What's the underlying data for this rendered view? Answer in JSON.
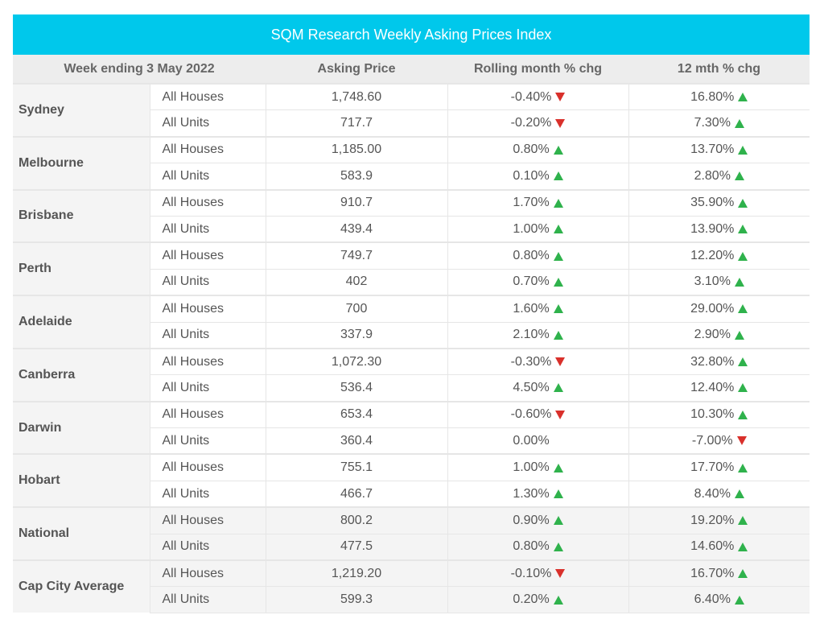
{
  "chart_data": {
    "type": "table",
    "title": "SQM Research Weekly Asking Prices Index",
    "columns": [
      "Week ending 3 May 2022",
      "Asking Price",
      "Rolling month % chg",
      "12 mth % chg"
    ],
    "colors": {
      "header_bar": "#00c8eb",
      "up": "#2fb24c",
      "down": "#d9302b"
    },
    "rows": [
      {
        "city": "Sydney",
        "items": [
          {
            "type": "All Houses",
            "price": "1,748.60",
            "month": "-0.40%",
            "month_dir": "down",
            "year": "16.80%",
            "year_dir": "up"
          },
          {
            "type": "All Units",
            "price": "717.7",
            "month": "-0.20%",
            "month_dir": "down",
            "year": "7.30%",
            "year_dir": "up"
          }
        ]
      },
      {
        "city": "Melbourne",
        "items": [
          {
            "type": "All Houses",
            "price": "1,185.00",
            "month": "0.80%",
            "month_dir": "up",
            "year": "13.70%",
            "year_dir": "up"
          },
          {
            "type": "All Units",
            "price": "583.9",
            "month": "0.10%",
            "month_dir": "up",
            "year": "2.80%",
            "year_dir": "up"
          }
        ]
      },
      {
        "city": "Brisbane",
        "items": [
          {
            "type": "All Houses",
            "price": "910.7",
            "month": "1.70%",
            "month_dir": "up",
            "year": "35.90%",
            "year_dir": "up"
          },
          {
            "type": "All Units",
            "price": "439.4",
            "month": "1.00%",
            "month_dir": "up",
            "year": "13.90%",
            "year_dir": "up"
          }
        ]
      },
      {
        "city": "Perth",
        "items": [
          {
            "type": "All Houses",
            "price": "749.7",
            "month": "0.80%",
            "month_dir": "up",
            "year": "12.20%",
            "year_dir": "up"
          },
          {
            "type": "All Units",
            "price": "402",
            "month": "0.70%",
            "month_dir": "up",
            "year": "3.10%",
            "year_dir": "up"
          }
        ]
      },
      {
        "city": "Adelaide",
        "items": [
          {
            "type": "All Houses",
            "price": "700",
            "month": "1.60%",
            "month_dir": "up",
            "year": "29.00%",
            "year_dir": "up"
          },
          {
            "type": "All Units",
            "price": "337.9",
            "month": "2.10%",
            "month_dir": "up",
            "year": "2.90%",
            "year_dir": "up"
          }
        ]
      },
      {
        "city": "Canberra",
        "items": [
          {
            "type": "All Houses",
            "price": "1,072.30",
            "month": "-0.30%",
            "month_dir": "down",
            "year": "32.80%",
            "year_dir": "up"
          },
          {
            "type": "All Units",
            "price": "536.4",
            "month": "4.50%",
            "month_dir": "up",
            "year": "12.40%",
            "year_dir": "up"
          }
        ]
      },
      {
        "city": "Darwin",
        "items": [
          {
            "type": "All Houses",
            "price": "653.4",
            "month": "-0.60%",
            "month_dir": "down",
            "year": "10.30%",
            "year_dir": "up"
          },
          {
            "type": "All Units",
            "price": "360.4",
            "month": "0.00%",
            "month_dir": "none",
            "year": "-7.00%",
            "year_dir": "down"
          }
        ]
      },
      {
        "city": "Hobart",
        "items": [
          {
            "type": "All Houses",
            "price": "755.1",
            "month": "1.00%",
            "month_dir": "up",
            "year": "17.70%",
            "year_dir": "up"
          },
          {
            "type": "All Units",
            "price": "466.7",
            "month": "1.30%",
            "month_dir": "up",
            "year": "8.40%",
            "year_dir": "up"
          }
        ]
      },
      {
        "city": "National",
        "shaded": true,
        "items": [
          {
            "type": "All Houses",
            "price": "800.2",
            "month": "0.90%",
            "month_dir": "up",
            "year": "19.20%",
            "year_dir": "up"
          },
          {
            "type": "All Units",
            "price": "477.5",
            "month": "0.80%",
            "month_dir": "up",
            "year": "14.60%",
            "year_dir": "up"
          }
        ]
      },
      {
        "city": "Cap City Average",
        "shaded": true,
        "items": [
          {
            "type": "All Houses",
            "price": "1,219.20",
            "month": "-0.10%",
            "month_dir": "down",
            "year": "16.70%",
            "year_dir": "up"
          },
          {
            "type": "All Units",
            "price": "599.3",
            "month": "0.20%",
            "month_dir": "up",
            "year": "6.40%",
            "year_dir": "up"
          }
        ]
      }
    ]
  }
}
